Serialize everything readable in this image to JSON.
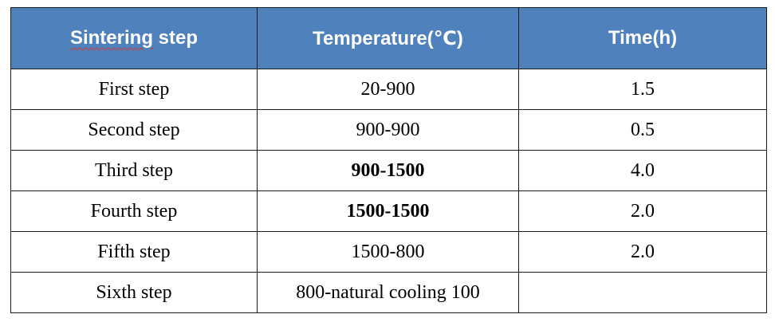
{
  "table": {
    "headers": {
      "step_word1": "Sintering",
      "step_word2": "step",
      "temperature": "Temperature(℃)",
      "time": "Time(h)"
    },
    "rows": [
      {
        "step": "First step",
        "temperature": "20-900",
        "time": "1.5",
        "temperature_bold": false
      },
      {
        "step": "Second step",
        "temperature": "900-900",
        "time": "0.5",
        "temperature_bold": false
      },
      {
        "step": "Third step",
        "temperature": "900-1500",
        "time": "4.0",
        "temperature_bold": true
      },
      {
        "step": "Fourth step",
        "temperature": "1500-1500",
        "time": "2.0",
        "temperature_bold": true
      },
      {
        "step": "Fifth step",
        "temperature": "1500-800",
        "time": "2.0",
        "temperature_bold": false
      },
      {
        "step": "Sixth step",
        "temperature": "800-natural cooling 100",
        "time": "",
        "temperature_bold": false
      }
    ]
  },
  "colors": {
    "header_background": "#4f81bd",
    "header_text": "#ffffff",
    "spellcheck_underline": "#d9352a"
  }
}
